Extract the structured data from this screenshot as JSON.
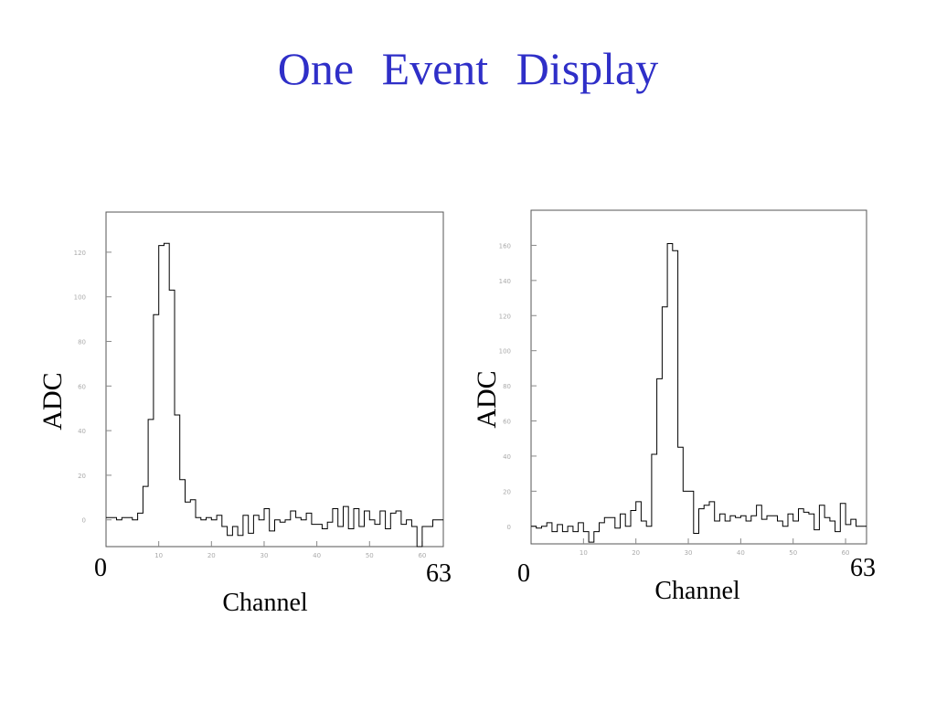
{
  "title": "One   Event   Display",
  "chart_data": [
    {
      "type": "histogram",
      "ylabel": "ADC",
      "xlabel": "Channel",
      "x_start_label": "0",
      "x_end_label": "63",
      "xlim": [
        0,
        64
      ],
      "ylim": [
        -12,
        138
      ],
      "x_ticks": [
        10,
        20,
        30,
        40,
        50,
        60
      ],
      "y_ticks": [
        0,
        20,
        40,
        60,
        80,
        100,
        120
      ],
      "values": [
        1,
        1,
        0,
        1,
        1,
        0,
        3,
        15,
        45,
        92,
        123,
        124,
        103,
        47,
        18,
        8,
        9,
        1,
        0,
        1,
        0,
        2,
        -3,
        -7,
        -3,
        -7,
        2,
        -6,
        2,
        0,
        5,
        -5,
        0,
        -1,
        0,
        4,
        1,
        0,
        3,
        -2,
        -2,
        -4,
        -1,
        5,
        -3,
        6,
        -4,
        5,
        -3,
        4,
        0,
        -2,
        4,
        -4,
        3,
        4,
        -2,
        0,
        -3,
        -12,
        -3,
        -3,
        0,
        0
      ],
      "color_line": "#000000"
    },
    {
      "type": "histogram",
      "ylabel": "ADC",
      "xlabel": "Channel",
      "x_start_label": "0",
      "x_end_label": "63",
      "xlim": [
        0,
        64
      ],
      "ylim": [
        -10,
        180
      ],
      "x_ticks": [
        10,
        20,
        30,
        40,
        50,
        60
      ],
      "y_ticks": [
        0,
        20,
        40,
        60,
        80,
        100,
        120,
        140,
        160
      ],
      "values": [
        0,
        -1,
        0,
        2,
        -3,
        1,
        -3,
        0,
        -3,
        2,
        -3,
        -9,
        -3,
        2,
        5,
        5,
        -1,
        7,
        0,
        9,
        14,
        3,
        0,
        41,
        84,
        125,
        161,
        157,
        45,
        20,
        20,
        -4,
        10,
        12,
        14,
        3,
        7,
        3,
        6,
        5,
        6,
        3,
        6,
        12,
        4,
        6,
        6,
        3,
        0,
        7,
        3,
        10,
        8,
        7,
        -2,
        12,
        5,
        3,
        -3,
        13,
        1,
        4,
        0,
        0
      ],
      "color_line": "#000000"
    }
  ]
}
